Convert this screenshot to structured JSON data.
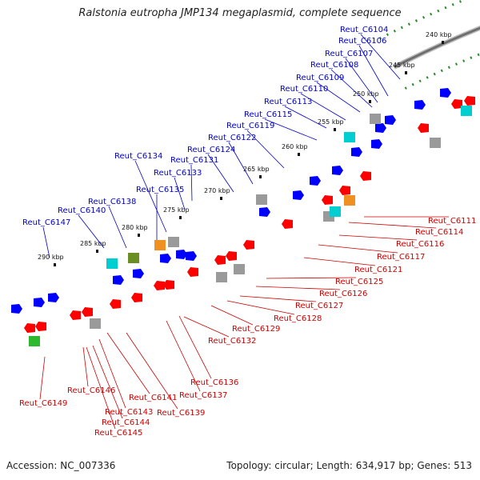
{
  "title": "Ralstonia eutropha JMP134 megaplasmid, complete sequence",
  "footer": {
    "accession": "Accession: NC_007336",
    "summary": "Topology: circular; Length: 634,917 bp; Genes: 513"
  },
  "colors": {
    "backbone": "#8c8c8c",
    "tick_ring": "#2a8a2a",
    "label_top": "#0000cc",
    "label_bottom": "#cc0000",
    "gene_top": "#0000ff",
    "gene_bottom": "#ff0000",
    "cog_cyan": "#00ced1",
    "cog_orange": "#f09020",
    "cog_olive": "#6b8e23",
    "cog_green": "#2eb82e",
    "cog_gray": "#9a9a9a"
  },
  "scale_labels": [
    "240 kbp",
    "245 kbp",
    "250 kbp",
    "255 kbp",
    "260 kbp",
    "265 kbp",
    "270 kbp",
    "275 kbp",
    "280 kbp",
    "285 kbp",
    "290 kbp"
  ],
  "top_genes": [
    "Reut_C6104",
    "Reut_C6106",
    "Reut_C6107",
    "Reut_C6108",
    "Reut_C6109",
    "Reut_C6110",
    "Reut_C6113",
    "Reut_C6115",
    "Reut_C6119",
    "Reut_C6122",
    "Reut_C6124",
    "Reut_C6131",
    "Reut_C6133",
    "Reut_C6134",
    "Reut_C6135",
    "Reut_C6138",
    "Reut_C6140",
    "Reut_C6147"
  ],
  "bottom_genes": [
    "Reut_C6111",
    "Reut_C6114",
    "Reut_C6116",
    "Reut_C6117",
    "Reut_C6121",
    "Reut_C6125",
    "Reut_C6126",
    "Reut_C6127",
    "Reut_C6128",
    "Reut_C6129",
    "Reut_C6132",
    "Reut_C6136",
    "Reut_C6137",
    "Reut_C6139",
    "Reut_C6141",
    "Reut_C6143",
    "Reut_C6144",
    "Reut_C6145",
    "Reut_C6146",
    "Reut_C6149"
  ]
}
